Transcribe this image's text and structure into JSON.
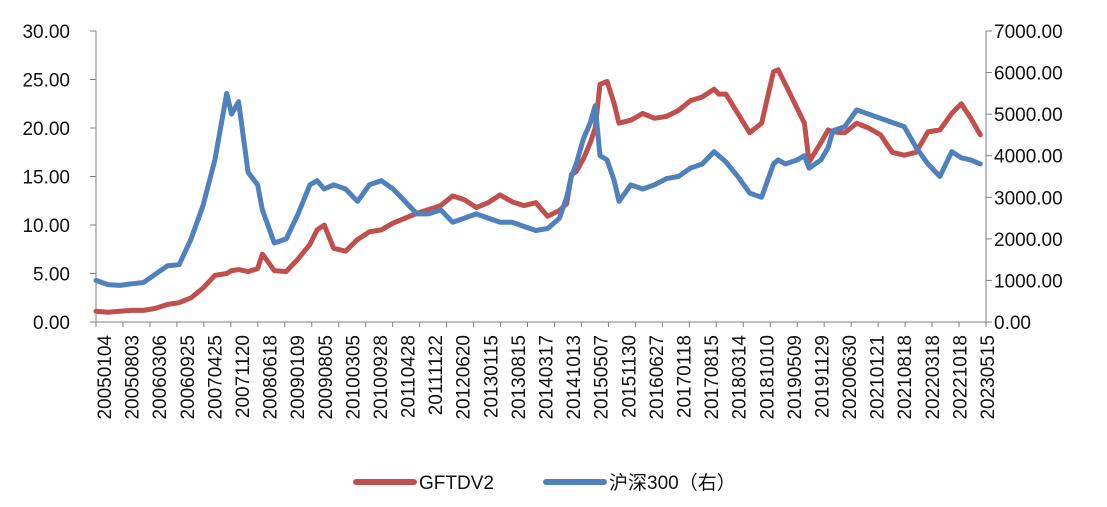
{
  "chart_data": {
    "type": "line",
    "title": "",
    "xlabel": "",
    "ylabel_left": "",
    "ylabel_right": "",
    "ylim_left": [
      0,
      30
    ],
    "ylim_right": [
      0,
      7000
    ],
    "y_left_ticks": [
      "0.00",
      "5.00",
      "10.00",
      "15.00",
      "20.00",
      "25.00",
      "30.00"
    ],
    "y_right_ticks": [
      "0.00",
      "1000.00",
      "2000.00",
      "3000.00",
      "4000.00",
      "5000.00",
      "6000.00",
      "7000.00"
    ],
    "x_tick_labels": [
      "20050104",
      "20050803",
      "20060306",
      "20060925",
      "20070425",
      "20071120",
      "20080618",
      "20090109",
      "20090805",
      "20100305",
      "20100928",
      "20110428",
      "20111122",
      "20120620",
      "20130115",
      "20130815",
      "20140317",
      "20141013",
      "20150507",
      "20151130",
      "20160627",
      "20170118",
      "20170815",
      "20180314",
      "20181010",
      "20190509",
      "20191129",
      "20200630",
      "20210121",
      "20210818",
      "20220318",
      "20221018",
      "20230515"
    ],
    "grid": false,
    "legend_position": "bottom",
    "series": [
      {
        "name": "GFTDV2",
        "axis": "left",
        "color": "#C0504D",
        "x": [
          2005.0,
          2005.25,
          2005.5,
          2005.75,
          2006.0,
          2006.25,
          2006.5,
          2006.75,
          2007.0,
          2007.25,
          2007.5,
          2007.75,
          2007.85,
          2008.0,
          2008.2,
          2008.4,
          2008.5,
          2008.75,
          2009.0,
          2009.25,
          2009.5,
          2009.65,
          2009.8,
          2010.0,
          2010.25,
          2010.5,
          2010.75,
          2011.0,
          2011.25,
          2011.5,
          2011.75,
          2012.0,
          2012.25,
          2012.5,
          2012.75,
          2013.0,
          2013.25,
          2013.5,
          2013.75,
          2014.0,
          2014.25,
          2014.5,
          2014.75,
          2014.9,
          2015.0,
          2015.1,
          2015.25,
          2015.4,
          2015.5,
          2015.6,
          2015.75,
          2015.9,
          2016.0,
          2016.25,
          2016.5,
          2016.75,
          2017.0,
          2017.25,
          2017.5,
          2017.75,
          2018.0,
          2018.1,
          2018.25,
          2018.5,
          2018.75,
          2019.0,
          2019.25,
          2019.35,
          2019.5,
          2019.75,
          2019.9,
          2020.0,
          2020.25,
          2020.4,
          2020.5,
          2020.75,
          2021.0,
          2021.25,
          2021.5,
          2021.75,
          2022.0,
          2022.25,
          2022.5,
          2022.75,
          2023.0,
          2023.2,
          2023.4,
          2023.6
        ],
        "y": [
          1.1,
          1.0,
          1.1,
          1.2,
          1.2,
          1.4,
          1.8,
          2.0,
          2.5,
          3.5,
          4.8,
          5.0,
          5.3,
          5.4,
          5.2,
          5.5,
          7.0,
          5.3,
          5.2,
          6.5,
          8.0,
          9.5,
          10.0,
          7.6,
          7.3,
          8.5,
          9.3,
          9.5,
          10.2,
          10.7,
          11.2,
          11.6,
          12.0,
          13.0,
          12.6,
          11.8,
          12.3,
          13.1,
          12.4,
          12.0,
          12.3,
          10.9,
          11.5,
          12.2,
          15.2,
          15.5,
          16.8,
          18.5,
          20.0,
          24.5,
          24.8,
          22.5,
          20.5,
          20.8,
          21.5,
          21.0,
          21.2,
          21.8,
          22.8,
          23.2,
          24.0,
          23.5,
          23.5,
          21.5,
          19.5,
          20.5,
          25.8,
          26.0,
          24.5,
          22.0,
          20.5,
          16.5,
          18.5,
          19.8,
          19.6,
          19.5,
          20.5,
          20.0,
          19.3,
          17.5,
          17.2,
          17.5,
          19.6,
          19.8,
          21.5,
          22.5,
          21.0,
          19.3
        ]
      },
      {
        "name": "沪深300（右）",
        "axis": "right",
        "color": "#4F81BD",
        "x": [
          2005.0,
          2005.25,
          2005.5,
          2005.75,
          2006.0,
          2006.25,
          2006.5,
          2006.75,
          2007.0,
          2007.25,
          2007.5,
          2007.75,
          2007.85,
          2008.0,
          2008.2,
          2008.4,
          2008.5,
          2008.75,
          2009.0,
          2009.25,
          2009.5,
          2009.65,
          2009.8,
          2010.0,
          2010.25,
          2010.5,
          2010.75,
          2011.0,
          2011.25,
          2011.5,
          2011.75,
          2012.0,
          2012.25,
          2012.5,
          2012.75,
          2013.0,
          2013.25,
          2013.5,
          2013.75,
          2014.0,
          2014.25,
          2014.5,
          2014.75,
          2014.9,
          2015.0,
          2015.1,
          2015.25,
          2015.4,
          2015.5,
          2015.6,
          2015.75,
          2015.9,
          2016.0,
          2016.25,
          2016.5,
          2016.75,
          2017.0,
          2017.25,
          2017.5,
          2017.75,
          2018.0,
          2018.1,
          2018.25,
          2018.5,
          2018.75,
          2019.0,
          2019.25,
          2019.35,
          2019.5,
          2019.75,
          2019.9,
          2020.0,
          2020.25,
          2020.4,
          2020.5,
          2020.75,
          2021.0,
          2021.25,
          2021.5,
          2021.75,
          2022.0,
          2022.25,
          2022.5,
          2022.75,
          2023.0,
          2023.2,
          2023.4,
          2023.6
        ],
        "y": [
          1000,
          900,
          880,
          920,
          950,
          1150,
          1350,
          1380,
          2000,
          2800,
          3900,
          5500,
          5000,
          5300,
          3600,
          3300,
          2700,
          1900,
          2000,
          2600,
          3300,
          3400,
          3200,
          3300,
          3200,
          2900,
          3300,
          3400,
          3200,
          2900,
          2600,
          2600,
          2700,
          2400,
          2500,
          2600,
          2500,
          2400,
          2400,
          2300,
          2200,
          2250,
          2500,
          3000,
          3500,
          3800,
          4400,
          4800,
          5200,
          4000,
          3900,
          3400,
          2900,
          3300,
          3200,
          3300,
          3450,
          3500,
          3700,
          3800,
          4100,
          4000,
          3850,
          3500,
          3100,
          3000,
          3800,
          3900,
          3800,
          3900,
          4000,
          3700,
          3900,
          4200,
          4600,
          4700,
          5100,
          5000,
          4900,
          4800,
          4700,
          4200,
          3800,
          3500,
          4100,
          3950,
          3900,
          3800
        ]
      }
    ]
  }
}
